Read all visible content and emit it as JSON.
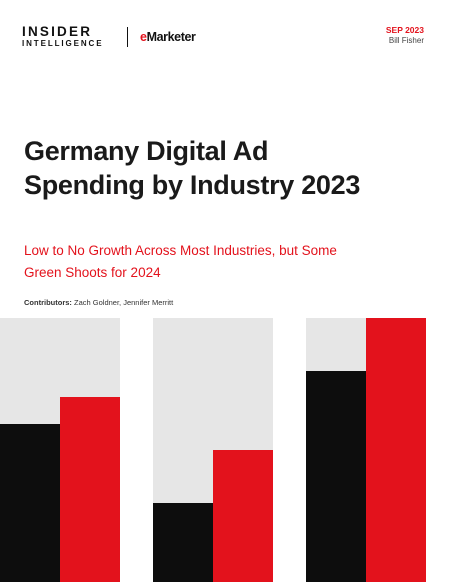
{
  "brand": {
    "insider_line1": "INSIDER",
    "insider_line2": "INTELLIGENCE",
    "emarketer_e": "e",
    "emarketer_rest": "Marketer"
  },
  "meta": {
    "date": "SEP 2023",
    "author": "Bill Fisher"
  },
  "report": {
    "title_line1": "Germany Digital Ad",
    "title_line2": "Spending by Industry 2023",
    "subtitle_line1": "Low to No Growth Across Most Industries, but Some",
    "subtitle_line2": "Green Shoots for 2024",
    "contributors_label": "Contributors:",
    "contributors_names": "Zach Goldner, Jennifer Merritt"
  },
  "colors": {
    "accent_red": "#e3121c",
    "black": "#0d0d0d",
    "gray": "#e6e6e6"
  },
  "decorative_bars": [
    {
      "group": 1,
      "black_level": 0.6,
      "red_level": 0.7
    },
    {
      "group": 2,
      "black_level": 0.3,
      "red_level": 0.5
    },
    {
      "group": 3,
      "black_level": 0.8,
      "red_level": 1.0
    }
  ]
}
